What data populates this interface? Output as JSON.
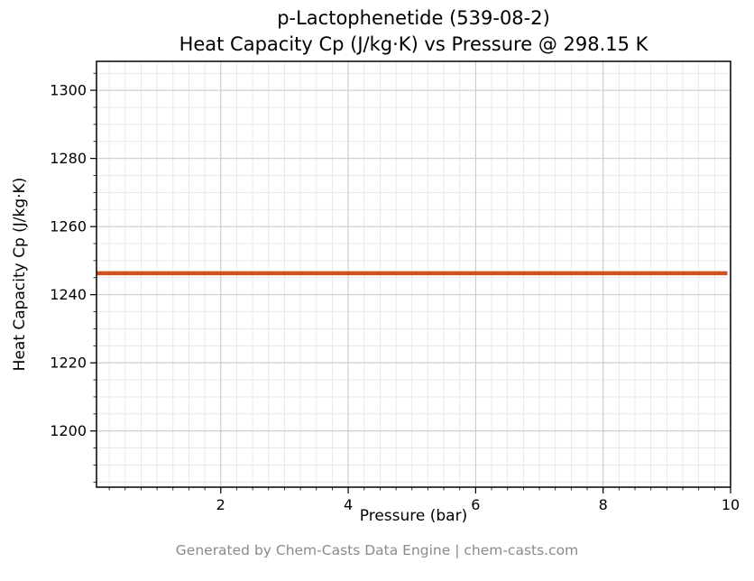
{
  "header": {
    "title_line1": "p-Lactophenetide (539-08-2)",
    "title_line2": "Heat Capacity Cp (J/kg·K) vs Pressure @ 298.15 K"
  },
  "footer": {
    "credit": "Generated by Chem-Casts Data Engine | chem-casts.com"
  },
  "chart_data": {
    "type": "line",
    "title": "p-Lactophenetide (539-08-2)\nHeat Capacity Cp (J/kg·K) vs Pressure @ 298.15 K",
    "xlabel": "Pressure (bar)",
    "ylabel": "Heat Capacity Cp (J/kg·K)",
    "xlim": [
      0.05,
      10
    ],
    "ylim": [
      1183.5,
      1308.5
    ],
    "x_ticks": [
      2,
      4,
      6,
      8,
      10
    ],
    "y_ticks": [
      1200,
      1220,
      1240,
      1260,
      1280,
      1300
    ],
    "minor_x_step": 0.25,
    "minor_y_step": 5,
    "grid": "both",
    "legend": "none",
    "series": [
      {
        "name": "Heat Capacity Cp",
        "color": "#d2521e",
        "x": [
          0.05,
          9.95
        ],
        "y": [
          1246.3,
          1246.3
        ]
      }
    ],
    "colors": {
      "major_grid": "#c8c8c8",
      "minor_grid": "#e4e4e4",
      "spine": "#000000",
      "tick_label": "#000000"
    }
  }
}
